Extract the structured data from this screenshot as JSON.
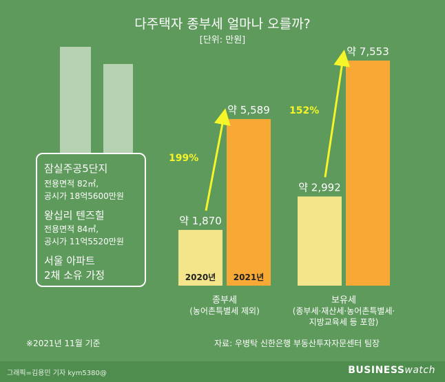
{
  "header": {
    "title": "다주택자 종부세 얼마나 오를까?",
    "unit": "[단위: 만원]"
  },
  "infobox": {
    "apt1_name": "잠실주공5단지",
    "apt1_area": "전용면적 82㎡,",
    "apt1_price": "공시가 18억5600만원",
    "apt2_name": "왕십리 텐즈힐",
    "apt2_area": "전용면적 84㎡,",
    "apt2_price": "공시가 11억5520만원",
    "assumption_line1": "서울 아파트",
    "assumption_line2": "2채 소유 가정"
  },
  "chart_data": {
    "type": "bar",
    "title": "다주택자 종부세 얼마나 오를까?",
    "unit": "[단위: 만원]",
    "value_prefix": "약",
    "series": [
      {
        "name": "2020년",
        "color": "#f4e58a",
        "values": [
          1870,
          2992
        ]
      },
      {
        "name": "2021년",
        "color": "#f8a935",
        "values": [
          5589,
          7553
        ]
      }
    ],
    "groups": [
      {
        "label_line1": "종부세",
        "label_line2": "(농어촌특별세 제외)",
        "label_line3": "",
        "growth": "199%"
      },
      {
        "label_line1": "보유세",
        "label_line2": "(종부세·재산세·농어촌특별세·",
        "label_line3": "지방교육세 등 포함)",
        "growth": "152%"
      }
    ],
    "ylim": [
      0,
      7553
    ],
    "grid": false,
    "legend": "inside-bars"
  },
  "footer": {
    "note": "※2021년 11월 기준",
    "source": "자료: 우병탁 신한은행 부동산투자자문센터 팀장",
    "credit": "그래픽=김용민 기자 kym5380@",
    "brand_bold": "BUSINESS",
    "brand_light": "watch"
  },
  "colors": {
    "background": "#5d9a5b",
    "bar_2020": "#f4e58a",
    "bar_2021": "#f8a935",
    "arrow": "#f5f52a",
    "growth_text": "#f5f52a"
  }
}
